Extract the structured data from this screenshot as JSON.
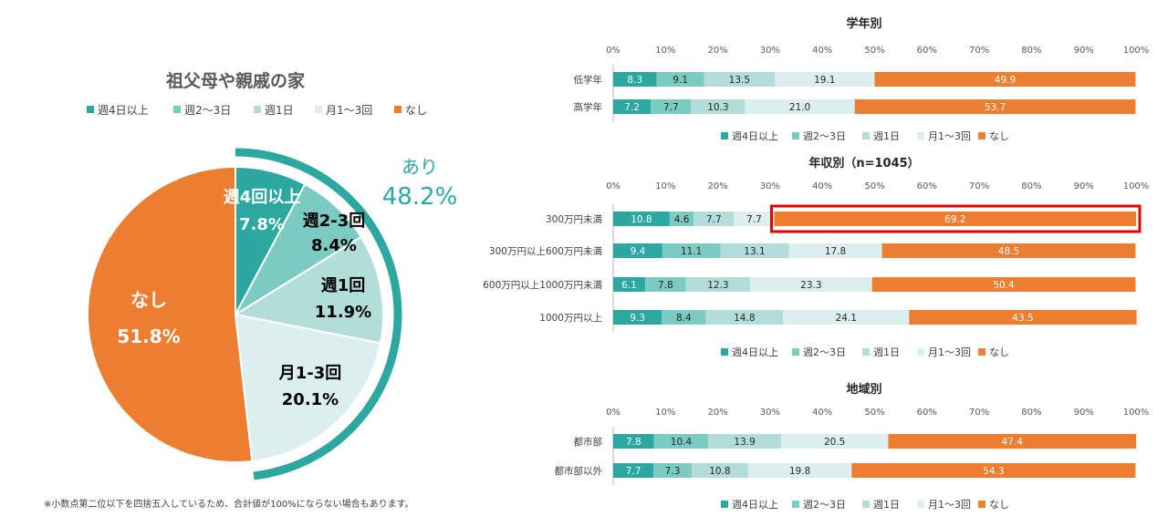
{
  "colors": {
    "weekly4plus": "#2ca8a0",
    "weekly2to3": "#7ccbc3",
    "weekly1": "#b2ddd9",
    "monthly1to3": "#dcefee",
    "none": "#ed7d31",
    "ring": "#2ca8a0",
    "axis": "#b0b0b0",
    "highlight": "#e00000"
  },
  "legend_labels": [
    "週4日以上",
    "週2～3日",
    "週1日",
    "月1～3回",
    "なし"
  ],
  "footnote": "※小数点第二位以下を四捨五入しているため、合計値が100%にならない場合もあります。",
  "chart_data": [
    {
      "type": "pie",
      "title": "祖父母や親戚の家",
      "slices": [
        {
          "label": "週4回以上",
          "value": 7.8,
          "value_label": "7.8%"
        },
        {
          "label": "週2-3回",
          "value": 8.4,
          "value_label": "8.4%"
        },
        {
          "label": "週1回",
          "value": 11.9,
          "value_label": "11.9%"
        },
        {
          "label": "月1-3回",
          "value": 20.1,
          "value_label": "20.1%"
        },
        {
          "label": "なし",
          "value": 51.8,
          "value_label": "51.8%"
        }
      ],
      "group_annotation": {
        "label": "あり",
        "value_label": "48.2%"
      }
    },
    {
      "type": "bar",
      "orientation": "horizontal-stacked-100",
      "title": "学年別",
      "xlim": [
        0,
        100
      ],
      "ticks": [
        "0%",
        "10%",
        "20%",
        "30%",
        "40%",
        "50%",
        "60%",
        "70%",
        "80%",
        "90%",
        "100%"
      ],
      "categories": [
        "低学年",
        "高学年"
      ],
      "series": [
        {
          "name": "週4日以上",
          "values": [
            8.3,
            7.2
          ]
        },
        {
          "name": "週2～3日",
          "values": [
            9.1,
            7.7
          ]
        },
        {
          "name": "週1日",
          "values": [
            13.5,
            10.3
          ]
        },
        {
          "name": "月1～3回",
          "values": [
            19.1,
            21.0
          ]
        },
        {
          "name": "なし",
          "values": [
            49.9,
            53.7
          ]
        }
      ]
    },
    {
      "type": "bar",
      "orientation": "horizontal-stacked-100",
      "title": "年収別（n=1045）",
      "xlim": [
        0,
        100
      ],
      "ticks": [
        "0%",
        "10%",
        "20%",
        "30%",
        "40%",
        "50%",
        "60%",
        "70%",
        "80%",
        "90%",
        "100%"
      ],
      "categories": [
        "300万円未満",
        "300万円以上600万円未満",
        "600万円以上1000万円未満",
        "1000万円以上"
      ],
      "series": [
        {
          "name": "週4日以上",
          "values": [
            10.8,
            9.4,
            6.1,
            9.3
          ]
        },
        {
          "name": "週2～3日",
          "values": [
            4.6,
            11.1,
            7.8,
            8.4
          ]
        },
        {
          "name": "週1日",
          "values": [
            7.7,
            13.1,
            12.3,
            14.8
          ]
        },
        {
          "name": "月1～3回",
          "values": [
            7.7,
            17.8,
            23.3,
            24.1
          ]
        },
        {
          "name": "なし",
          "values": [
            69.2,
            48.5,
            50.4,
            43.5
          ]
        }
      ],
      "highlight": {
        "category": "300万円未満",
        "series": "なし"
      }
    },
    {
      "type": "bar",
      "orientation": "horizontal-stacked-100",
      "title": "地域別",
      "xlim": [
        0,
        100
      ],
      "ticks": [
        "0%",
        "10%",
        "20%",
        "30%",
        "40%",
        "50%",
        "60%",
        "70%",
        "80%",
        "90%",
        "100%"
      ],
      "categories": [
        "都市部",
        "都市部以外"
      ],
      "series": [
        {
          "name": "週4日以上",
          "values": [
            7.8,
            7.7
          ]
        },
        {
          "name": "週2～3日",
          "values": [
            10.4,
            7.3
          ]
        },
        {
          "name": "週1日",
          "values": [
            13.9,
            10.8
          ]
        },
        {
          "name": "月1～3回",
          "values": [
            20.5,
            19.8
          ]
        },
        {
          "name": "なし",
          "values": [
            47.4,
            54.3
          ]
        }
      ]
    }
  ]
}
